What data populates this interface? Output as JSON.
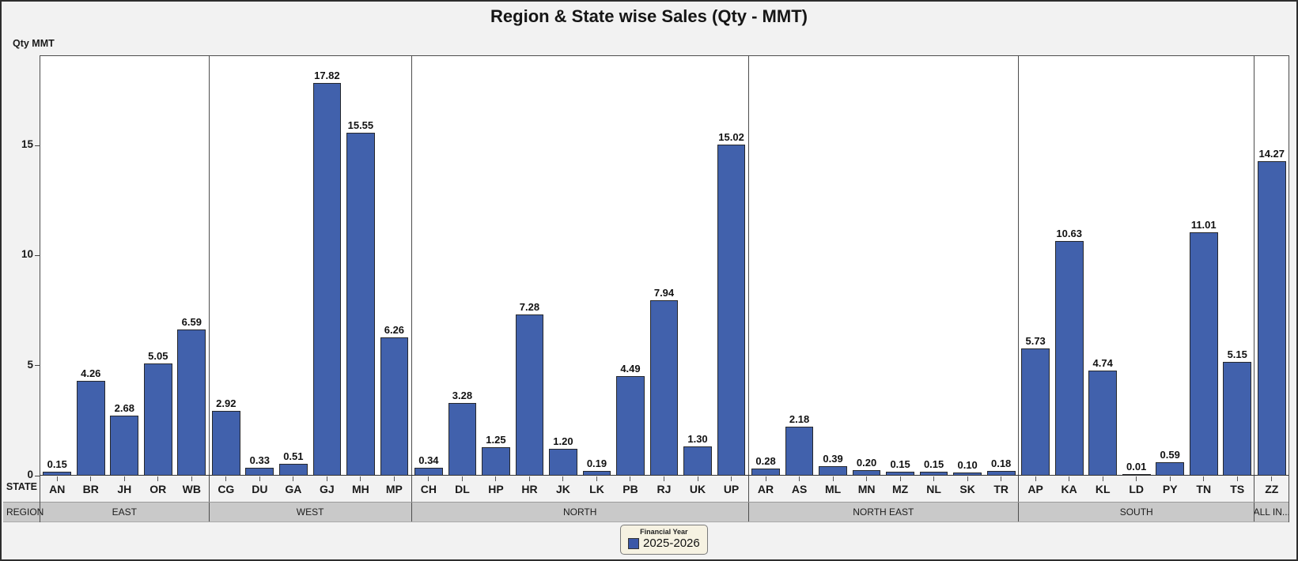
{
  "title": "Region & State wise Sales (Qty - MMT)",
  "y_axis_label": "Qty MMT",
  "row_headers": {
    "state": "STATE",
    "region": "REGION"
  },
  "legend": {
    "title": "Financial Year",
    "items": [
      {
        "label": "2025-2026",
        "color": "#3A57A8"
      }
    ]
  },
  "colors": {
    "bar_fill": "#4161AC",
    "bar_border": "#26282C",
    "region_band": "#C9C9C9",
    "page_background": "#F2F2F2",
    "plot_background": "#FFFFFF",
    "legend_background": "#F6F2E2"
  },
  "chart_data": {
    "type": "bar",
    "title": "Region & State wise Sales (Qty - MMT)",
    "xlabel": "STATE",
    "ylabel": "Qty MMT",
    "ylim": [
      0,
      19.1
    ],
    "yticks": [
      0,
      5,
      10,
      15
    ],
    "grid": false,
    "legend_position": "bottom",
    "series_name": "2025-2026",
    "groups": [
      {
        "region": "EAST",
        "states": [
          "AN",
          "BR",
          "JH",
          "OR",
          "WB"
        ],
        "values": [
          0.15,
          4.26,
          2.68,
          5.05,
          6.59
        ]
      },
      {
        "region": "WEST",
        "states": [
          "CG",
          "DU",
          "GA",
          "GJ",
          "MH",
          "MP"
        ],
        "values": [
          2.92,
          0.33,
          0.51,
          17.82,
          15.55,
          6.26
        ]
      },
      {
        "region": "NORTH",
        "states": [
          "CH",
          "DL",
          "HP",
          "HR",
          "JK",
          "LK",
          "PB",
          "RJ",
          "UK",
          "UP"
        ],
        "values": [
          0.34,
          3.28,
          1.25,
          7.28,
          1.2,
          0.19,
          4.49,
          7.94,
          1.3,
          15.02
        ]
      },
      {
        "region": "NORTH EAST",
        "states": [
          "AR",
          "AS",
          "ML",
          "MN",
          "MZ",
          "NL",
          "SK",
          "TR"
        ],
        "values": [
          0.28,
          2.18,
          0.39,
          0.2,
          0.15,
          0.15,
          0.1,
          0.18
        ]
      },
      {
        "region": "SOUTH",
        "states": [
          "AP",
          "KA",
          "KL",
          "LD",
          "PY",
          "TN",
          "TS"
        ],
        "values": [
          5.73,
          10.63,
          4.74,
          0.01,
          0.59,
          11.01,
          5.15
        ]
      },
      {
        "region": "ALL IN...",
        "states": [
          "ZZ"
        ],
        "values": [
          14.27
        ]
      }
    ]
  }
}
